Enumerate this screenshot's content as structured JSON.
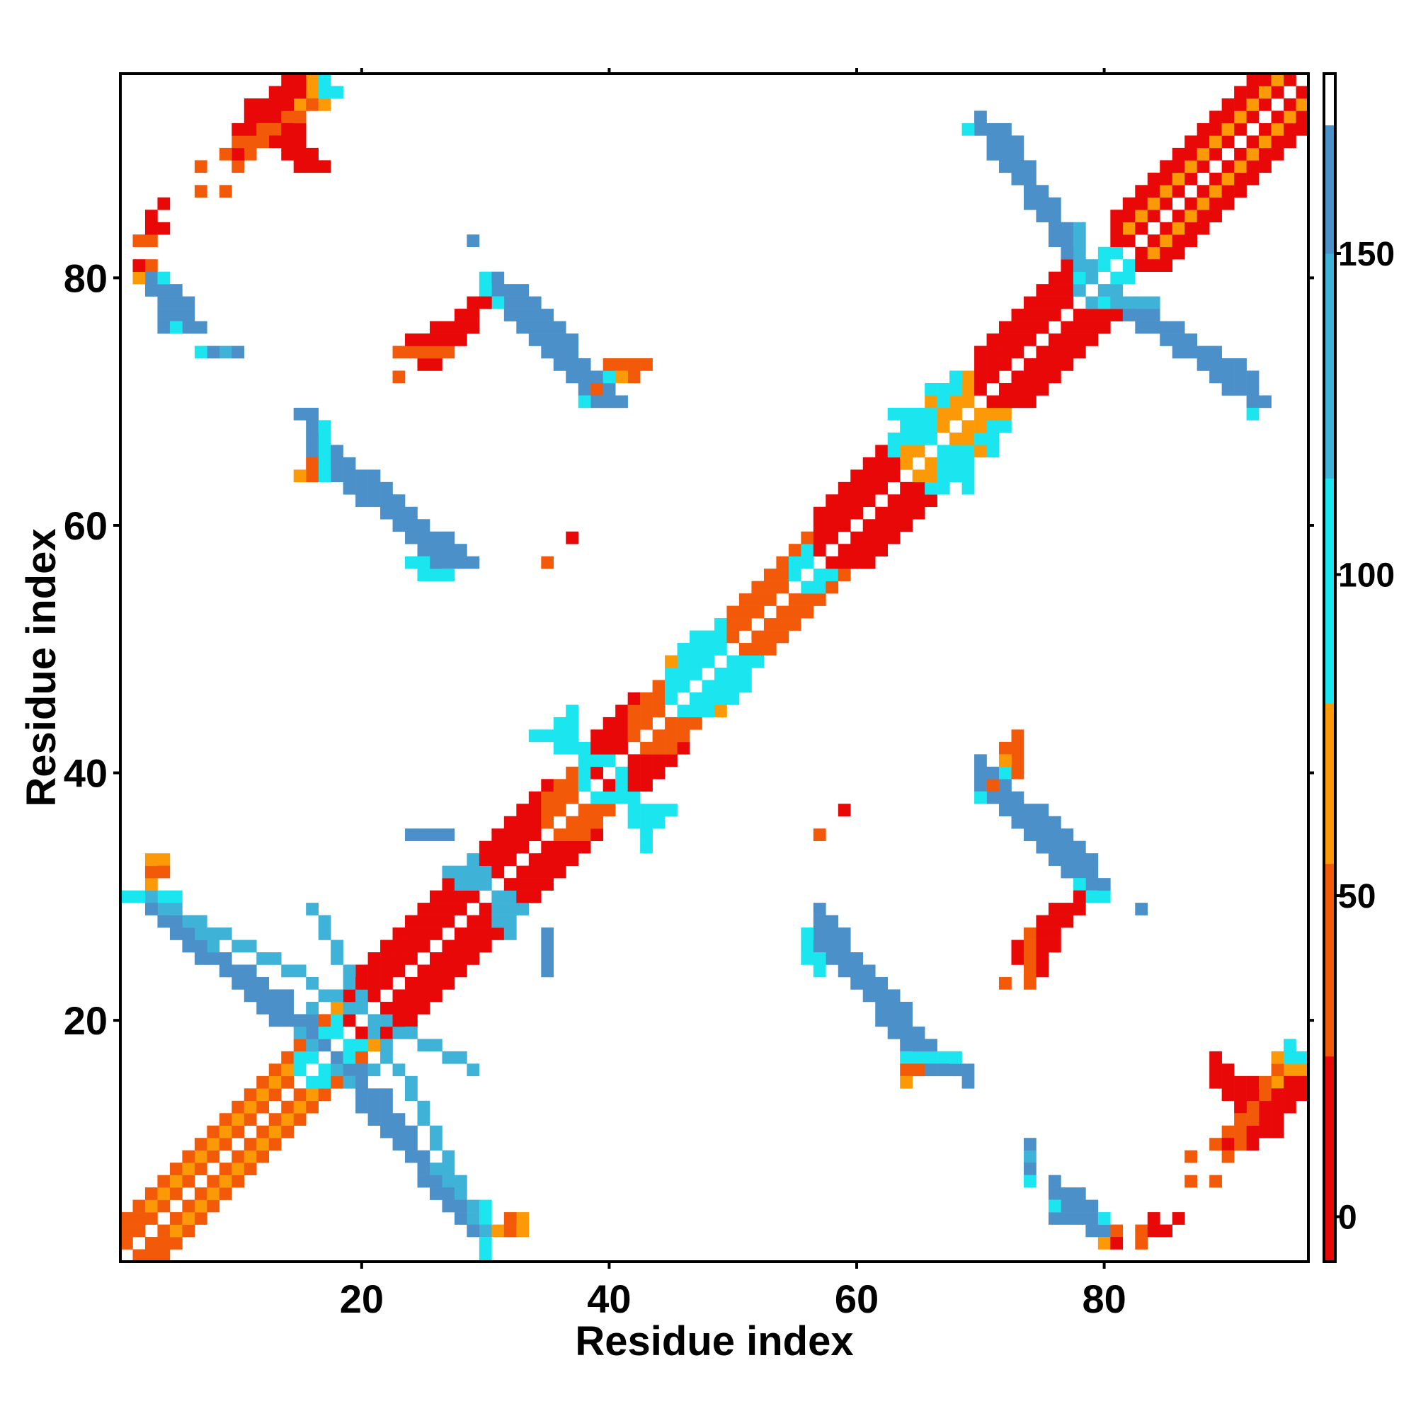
{
  "chart_data": {
    "type": "heatmap",
    "title": "",
    "xlabel": "Residue index",
    "ylabel": "Residue index",
    "xlim": [
      0.5,
      96.5
    ],
    "ylim": [
      0.5,
      96.5
    ],
    "x_ticks": [
      20,
      40,
      60,
      80
    ],
    "y_ticks": [
      20,
      40,
      60,
      80
    ],
    "x_tick_labels": [
      "20",
      "40",
      "60",
      "80"
    ],
    "y_tick_labels": [
      "20",
      "40",
      "60",
      "80"
    ],
    "grid": false,
    "colorbar": {
      "position": "right",
      "range": [
        -7,
        178
      ],
      "ticks": [
        0,
        50,
        100,
        150
      ],
      "tick_labels": [
        "0",
        "50",
        "100",
        "150"
      ],
      "bands": [
        {
          "from": -7,
          "to": 25,
          "color": "#e80808"
        },
        {
          "from": 25,
          "to": 55,
          "color": "#f25a0a"
        },
        {
          "from": 55,
          "to": 80,
          "color": "#fb9a06"
        },
        {
          "from": 80,
          "to": 115,
          "color": "#1be6ef"
        },
        {
          "from": 115,
          "to": 150,
          "color": "#3fb2d8"
        },
        {
          "from": 150,
          "to": 170,
          "color": "#4b90c8"
        },
        {
          "from": 170,
          "to": 178,
          "color": "#ffffff"
        }
      ]
    },
    "value_scale": [
      {
        "value": 10,
        "color": "#e80808"
      },
      {
        "value": 40,
        "color": "#f25a0a"
      },
      {
        "value": 65,
        "color": "#fb9a06"
      },
      {
        "value": 100,
        "color": "#1be6ef"
      },
      {
        "value": 130,
        "color": "#3fb2d8"
      },
      {
        "value": 160,
        "color": "#4b90c8"
      }
    ],
    "diagonal": {
      "from": 1,
      "to": 96
    },
    "series": [
      {
        "type": "diagonal-band",
        "offsets": [
          1,
          2,
          3
        ],
        "from": 1,
        "to": 19,
        "value": 40
      },
      {
        "type": "diagonal-band",
        "offsets": [
          2
        ],
        "from": 3,
        "to": 14,
        "value": 65
      },
      {
        "type": "diagonal-band",
        "offsets": [
          1,
          2
        ],
        "from": 15,
        "to": 19,
        "value": 100
      },
      {
        "type": "diagonal-band",
        "offsets": [
          1,
          2,
          3,
          4
        ],
        "from": 19,
        "to": 35,
        "value": 10
      },
      {
        "type": "diagonal-band",
        "offsets": [
          1,
          2,
          3
        ],
        "from": 35,
        "to": 38,
        "value": 40
      },
      {
        "type": "diagonal-band",
        "offsets": [
          1,
          2,
          3,
          4
        ],
        "from": 38,
        "to": 42,
        "value": 10
      },
      {
        "type": "diagonal-band",
        "offsets": [
          1,
          2,
          3
        ],
        "from": 42,
        "to": 45,
        "value": 40
      },
      {
        "type": "diagonal-band",
        "offsets": [
          1,
          2,
          3
        ],
        "from": 45,
        "to": 50,
        "value": 100
      },
      {
        "type": "diagonal-band",
        "offsets": [
          1,
          2,
          3
        ],
        "from": 50,
        "to": 56,
        "value": 40
      },
      {
        "type": "diagonal-band",
        "offsets": [
          1,
          2
        ],
        "from": 55,
        "to": 57,
        "value": 100
      },
      {
        "type": "diagonal-band",
        "offsets": [
          1,
          2,
          3,
          4
        ],
        "from": 57,
        "to": 66,
        "value": 10
      },
      {
        "type": "diagonal-band",
        "offsets": [
          1,
          2,
          3
        ],
        "from": 64,
        "to": 70,
        "value": 65
      },
      {
        "type": "diagonal-band",
        "offsets": [
          3,
          4
        ],
        "from": 63,
        "to": 68,
        "value": 100
      },
      {
        "type": "diagonal-band",
        "offsets": [
          1,
          2,
          3,
          4
        ],
        "from": 70,
        "to": 78,
        "value": 10
      },
      {
        "type": "diagonal-band",
        "offsets": [
          1,
          2
        ],
        "from": 78,
        "to": 82,
        "value": 100
      },
      {
        "type": "diagonal-band",
        "offsets": [
          1,
          2,
          3,
          4
        ],
        "from": 81,
        "to": 95,
        "value": 10
      },
      {
        "type": "diagonal-band",
        "offsets": [
          2
        ],
        "from": 82,
        "to": 95,
        "value": 65
      },
      {
        "type": "segment",
        "x0": 16,
        "y0": 18,
        "x1": 30,
        "y1": 3,
        "width": 2,
        "value": 160
      },
      {
        "type": "segment",
        "x0": 18,
        "y0": 16,
        "x1": 30,
        "y1": 4,
        "width": 1,
        "value": 130
      },
      {
        "type": "segment",
        "x0": 3,
        "y0": 29,
        "x1": 13,
        "y1": 20,
        "width": 2,
        "value": 160
      },
      {
        "type": "segment",
        "x0": 2,
        "y0": 30,
        "x1": 5,
        "y1": 30,
        "width": 1,
        "value": 100
      },
      {
        "type": "segment",
        "x0": 29,
        "y0": 16,
        "x1": 3,
        "y1": 30,
        "width": 1,
        "value": 130
      },
      {
        "type": "segment",
        "x0": 17,
        "y0": 65,
        "x1": 27,
        "y1": 57,
        "width": 3,
        "value": 160
      },
      {
        "type": "segment",
        "x0": 17,
        "y0": 66,
        "x1": 17,
        "y1": 65,
        "width": 1,
        "value": 100
      },
      {
        "type": "segment",
        "x0": 25,
        "y0": 56,
        "x1": 27,
        "y1": 56,
        "width": 1,
        "value": 100
      },
      {
        "type": "segment",
        "x0": 57,
        "y0": 26,
        "x1": 66,
        "y1": 16,
        "width": 3,
        "value": 160
      },
      {
        "type": "segment",
        "x0": 57,
        "y0": 25,
        "x1": 57,
        "y1": 24,
        "width": 1,
        "value": 100
      },
      {
        "type": "segment",
        "x0": 64,
        "y0": 17,
        "x1": 68,
        "y1": 17,
        "width": 1,
        "value": 100
      },
      {
        "type": "segment",
        "x0": 31,
        "y0": 79,
        "x1": 39,
        "y1": 70,
        "width": 3,
        "value": 160
      },
      {
        "type": "segment",
        "x0": 30,
        "y0": 80,
        "x1": 31,
        "y1": 80,
        "width": 1,
        "value": 100
      },
      {
        "type": "segment",
        "x0": 70,
        "y0": 39,
        "x1": 78,
        "y1": 31,
        "width": 3,
        "value": 160
      },
      {
        "type": "segment",
        "x0": 72,
        "y0": 40,
        "x1": 73,
        "y1": 40,
        "width": 1,
        "value": 100
      },
      {
        "type": "segment",
        "x0": 78,
        "y0": 31,
        "x1": 79,
        "y1": 30,
        "width": 1,
        "value": 100
      },
      {
        "type": "segment",
        "x0": 71,
        "y0": 92,
        "x1": 77,
        "y1": 82,
        "width": 2,
        "value": 160
      },
      {
        "type": "segment",
        "x0": 82,
        "y0": 77,
        "x1": 92,
        "y1": 70,
        "width": 2,
        "value": 160
      },
      {
        "type": "segment",
        "x0": 78,
        "y0": 79,
        "x1": 83,
        "y1": 78,
        "width": 2,
        "value": 130
      },
      {
        "type": "segment",
        "x0": 34,
        "y0": 43,
        "x1": 39,
        "y1": 41,
        "width": 2,
        "value": 100
      },
      {
        "type": "segment",
        "x0": 39,
        "y0": 38,
        "x1": 43,
        "y1": 37,
        "width": 2,
        "value": 100
      },
      {
        "type": "segment",
        "x0": 46,
        "y0": 50,
        "x1": 50,
        "y1": 47,
        "width": 2,
        "value": 100
      },
      {
        "type": "segment",
        "x0": 27,
        "y0": 32,
        "x1": 32,
        "y1": 29,
        "width": 2,
        "value": 130
      },
      {
        "type": "segment",
        "x0": 63,
        "y0": 69,
        "x1": 68,
        "y1": 65,
        "width": 2,
        "value": 100
      },
      {
        "type": "segment",
        "x0": 11,
        "y0": 94,
        "x1": 15,
        "y1": 89,
        "width": 3,
        "value": 10
      },
      {
        "type": "segment",
        "x0": 10,
        "y0": 89,
        "x1": 14,
        "y1": 93,
        "width": 1,
        "value": 40
      },
      {
        "type": "segment",
        "x0": 15,
        "y0": 94,
        "x1": 16,
        "y1": 96,
        "width": 1,
        "value": 65
      },
      {
        "type": "segment",
        "x0": 90,
        "y0": 10,
        "x1": 95,
        "y1": 15,
        "width": 3,
        "value": 10
      },
      {
        "type": "segment",
        "x0": 90,
        "y0": 9,
        "x1": 94,
        "y1": 16,
        "width": 1,
        "value": 40
      },
      {
        "type": "segment",
        "x0": 94,
        "y0": 17,
        "x1": 95,
        "y1": 17,
        "width": 1,
        "value": 65
      },
      {
        "type": "segment",
        "x0": 25,
        "y0": 73,
        "x1": 29,
        "y1": 78,
        "width": 2,
        "value": 10
      },
      {
        "type": "segment",
        "x0": 23,
        "y0": 74,
        "x1": 27,
        "y1": 74,
        "width": 1,
        "value": 40
      },
      {
        "type": "segment",
        "x0": 74,
        "y0": 24,
        "x1": 76,
        "y1": 29,
        "width": 2,
        "value": 10
      },
      {
        "type": "segment",
        "x0": 74,
        "y0": 23,
        "x1": 74,
        "y1": 26,
        "width": 1,
        "value": 40
      },
      {
        "type": "segment",
        "x0": 40,
        "y0": 73,
        "x1": 42,
        "y1": 72,
        "width": 1,
        "value": 40
      },
      {
        "type": "segment",
        "x0": 72,
        "y0": 41,
        "x1": 73,
        "y1": 43,
        "width": 1,
        "value": 40
      },
      {
        "type": "segment",
        "x0": 4,
        "y0": 79,
        "x1": 6,
        "y1": 76,
        "width": 2,
        "value": 160
      },
      {
        "type": "segment",
        "x0": 76,
        "y0": 4,
        "x1": 80,
        "y1": 3,
        "width": 2,
        "value": 160
      },
      {
        "type": "segment",
        "x0": 20,
        "y0": 13,
        "x1": 22,
        "y1": 13,
        "width": 1,
        "value": 160
      },
      {
        "type": "segment",
        "x0": 12,
        "y0": 22,
        "x1": 14,
        "y1": 22,
        "width": 1,
        "value": 160
      }
    ],
    "points": [
      {
        "x": 3,
        "y": 83,
        "value": 40
      },
      {
        "x": 4,
        "y": 84,
        "value": 10
      },
      {
        "x": 2,
        "y": 80,
        "value": 65
      },
      {
        "x": 3,
        "y": 81,
        "value": 40
      },
      {
        "x": 4,
        "y": 80,
        "value": 100
      },
      {
        "x": 9,
        "y": 74,
        "value": 130
      },
      {
        "x": 10,
        "y": 74,
        "value": 160
      },
      {
        "x": 9,
        "y": 87,
        "value": 40
      },
      {
        "x": 29,
        "y": 83,
        "value": 160
      },
      {
        "x": 23,
        "y": 72,
        "value": 10
      },
      {
        "x": 37,
        "y": 59,
        "value": 10
      },
      {
        "x": 35,
        "y": 57,
        "value": 40
      },
      {
        "x": 16,
        "y": 69,
        "value": 160
      },
      {
        "x": 16,
        "y": 64,
        "value": 40
      },
      {
        "x": 17,
        "y": 96,
        "value": 100
      },
      {
        "x": 17,
        "y": 95,
        "value": 100
      },
      {
        "x": 4,
        "y": 33,
        "value": 65
      },
      {
        "x": 4,
        "y": 32,
        "value": 40
      },
      {
        "x": 24,
        "y": 35,
        "value": 160
      },
      {
        "x": 26,
        "y": 35,
        "value": 160
      },
      {
        "x": 35,
        "y": 27,
        "value": 160
      },
      {
        "x": 35,
        "y": 25,
        "value": 160
      },
      {
        "x": 31,
        "y": 3,
        "value": 65
      },
      {
        "x": 32,
        "y": 3,
        "value": 40
      },
      {
        "x": 33,
        "y": 3,
        "value": 65
      },
      {
        "x": 30,
        "y": 1,
        "value": 100
      },
      {
        "x": 59,
        "y": 37,
        "value": 10
      },
      {
        "x": 57,
        "y": 35,
        "value": 40
      },
      {
        "x": 69,
        "y": 15,
        "value": 160
      },
      {
        "x": 64,
        "y": 15,
        "value": 65
      },
      {
        "x": 65,
        "y": 16,
        "value": 40
      },
      {
        "x": 72,
        "y": 23,
        "value": 40
      },
      {
        "x": 83,
        "y": 29,
        "value": 160
      },
      {
        "x": 74,
        "y": 8,
        "value": 160
      },
      {
        "x": 74,
        "y": 7,
        "value": 100
      },
      {
        "x": 76,
        "y": 5,
        "value": 100
      },
      {
        "x": 80,
        "y": 2,
        "value": 65
      },
      {
        "x": 81,
        "y": 2,
        "value": 10
      },
      {
        "x": 83,
        "y": 2,
        "value": 40
      },
      {
        "x": 84,
        "y": 3,
        "value": 10
      },
      {
        "x": 85,
        "y": 3,
        "value": 10
      },
      {
        "x": 86,
        "y": 4,
        "value": 10
      },
      {
        "x": 87,
        "y": 7,
        "value": 40
      },
      {
        "x": 89,
        "y": 7,
        "value": 40
      },
      {
        "x": 95,
        "y": 18,
        "value": 100
      },
      {
        "x": 96,
        "y": 17,
        "value": 100
      },
      {
        "x": 70,
        "y": 93,
        "value": 160
      },
      {
        "x": 69,
        "y": 92,
        "value": 100
      },
      {
        "x": 92,
        "y": 69,
        "value": 100
      },
      {
        "x": 93,
        "y": 70,
        "value": 160
      },
      {
        "x": 81,
        "y": 82,
        "value": 100
      },
      {
        "x": 82,
        "y": 82,
        "value": 65
      },
      {
        "x": 38,
        "y": 70,
        "value": 100
      },
      {
        "x": 39,
        "y": 71,
        "value": 40
      },
      {
        "x": 42,
        "y": 73,
        "value": 40
      },
      {
        "x": 41,
        "y": 72,
        "value": 65
      },
      {
        "x": 36,
        "y": 44,
        "value": 100
      },
      {
        "x": 37,
        "y": 45,
        "value": 100
      },
      {
        "x": 43,
        "y": 36,
        "value": 100
      },
      {
        "x": 44,
        "y": 36,
        "value": 100
      },
      {
        "x": 47,
        "y": 51,
        "value": 100
      },
      {
        "x": 48,
        "y": 51,
        "value": 100
      },
      {
        "x": 50,
        "y": 46,
        "value": 100
      },
      {
        "x": 49,
        "y": 45,
        "value": 65
      },
      {
        "x": 15,
        "y": 20,
        "value": 130
      },
      {
        "x": 16,
        "y": 20,
        "value": 160
      },
      {
        "x": 20,
        "y": 15,
        "value": 160
      },
      {
        "x": 21,
        "y": 16,
        "value": 130
      },
      {
        "x": 18,
        "y": 21,
        "value": 65
      },
      {
        "x": 21,
        "y": 18,
        "value": 65
      },
      {
        "x": 66,
        "y": 71,
        "value": 100
      },
      {
        "x": 67,
        "y": 71,
        "value": 65
      },
      {
        "x": 71,
        "y": 67,
        "value": 100
      },
      {
        "x": 70,
        "y": 66,
        "value": 65
      }
    ]
  }
}
